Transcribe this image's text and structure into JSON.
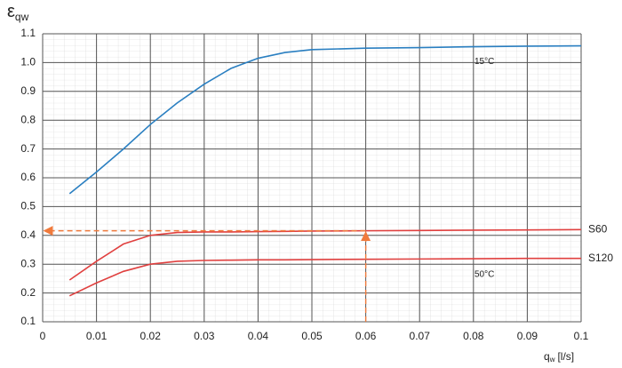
{
  "chart_data": {
    "type": "line",
    "ylabel": {
      "symbol": "ε",
      "subscript": "qw"
    },
    "xlabel": {
      "symbol": "q",
      "subscript": "w",
      "unit": "[l/s]"
    },
    "x": [
      0.005,
      0.01,
      0.015,
      0.02,
      0.025,
      0.03,
      0.035,
      0.04,
      0.045,
      0.05,
      0.06,
      0.07,
      0.08,
      0.09,
      0.1
    ],
    "series": [
      {
        "name": "15°C",
        "color": "#2a7fc1",
        "values": [
          0.545,
          0.62,
          0.7,
          0.785,
          0.86,
          0.925,
          0.98,
          1.015,
          1.035,
          1.045,
          1.05,
          1.052,
          1.055,
          1.057,
          1.058
        ]
      },
      {
        "name": "S60",
        "color": "#e0403f",
        "values": [
          0.245,
          0.31,
          0.37,
          0.4,
          0.41,
          0.412,
          0.412,
          0.413,
          0.414,
          0.415,
          0.416,
          0.417,
          0.418,
          0.419,
          0.42
        ]
      },
      {
        "name": "S120",
        "color": "#e0403f",
        "values": [
          0.19,
          0.235,
          0.275,
          0.3,
          0.31,
          0.313,
          0.314,
          0.315,
          0.315,
          0.316,
          0.317,
          0.318,
          0.319,
          0.32,
          0.32
        ]
      }
    ],
    "annotation": "50°C",
    "example_reading": {
      "x": 0.06,
      "y": 0.416,
      "color": "#f07a3c"
    },
    "xlim": [
      0,
      0.1
    ],
    "xticks": [
      0,
      0.01,
      0.02,
      0.03,
      0.04,
      0.05,
      0.06,
      0.07,
      0.08,
      0.09,
      0.1
    ],
    "ylim": [
      0.1,
      1.1
    ],
    "yticks": [
      0.1,
      0.2,
      0.3,
      0.4,
      0.5,
      0.6,
      0.7,
      0.8,
      0.9,
      {
        "value": 1,
        "label": "1.0"
      },
      1.1
    ],
    "grid": true
  }
}
